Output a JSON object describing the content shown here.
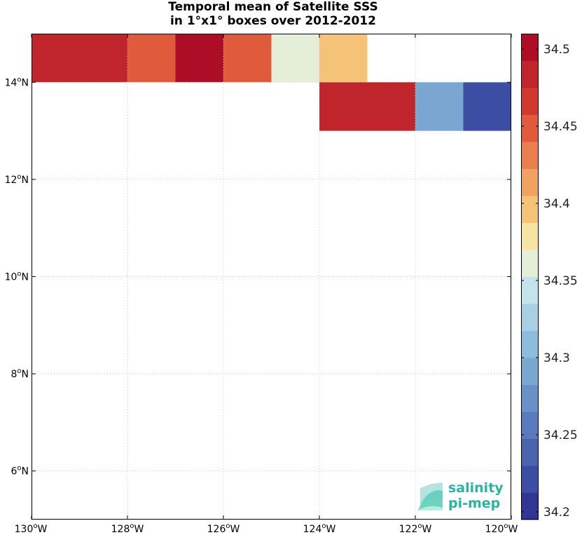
{
  "title": {
    "line1": "Temporal mean of Satellite SSS",
    "line2": "in 1°x1° boxes over 2012-2012"
  },
  "colors": {
    "palette": [
      "#313695",
      "#3b4ea3",
      "#4a64b0",
      "#5a7abe",
      "#6a90c8",
      "#7aa6d2",
      "#8ebcdc",
      "#a8cfe3",
      "#c5e3ea",
      "#e5efd8",
      "#f6e4a2",
      "#f4c378",
      "#f1a262",
      "#ea7e4f",
      "#e05a3c",
      "#d2382e",
      "#c1252c",
      "#ad0d26"
    ],
    "colorbar_min": 34.195,
    "colorbar_max": 34.51
  },
  "logo": {
    "line1": "salinity",
    "line2": "pi-mep",
    "icon": "salinity-pimep-logo-icon"
  },
  "chart_data": {
    "type": "heatmap",
    "title": "Temporal mean of Satellite SSS in 1°x1° boxes over 2012-2012",
    "x_range": [
      -130,
      -120
    ],
    "y_range": [
      5,
      15
    ],
    "x_ticks": [
      {
        "value": -130,
        "label": "130",
        "sup": "o",
        "suffix": "W"
      },
      {
        "value": -128,
        "label": "128",
        "sup": "o",
        "suffix": "W"
      },
      {
        "value": -126,
        "label": "126",
        "sup": "o",
        "suffix": "W"
      },
      {
        "value": -124,
        "label": "124",
        "sup": "o",
        "suffix": "W"
      },
      {
        "value": -122,
        "label": "122",
        "sup": "o",
        "suffix": "W"
      },
      {
        "value": -120,
        "label": "120",
        "sup": "o",
        "suffix": "W"
      }
    ],
    "y_ticks": [
      {
        "value": 6,
        "label": "6",
        "sup": "o",
        "suffix": "N"
      },
      {
        "value": 8,
        "label": "8",
        "sup": "o",
        "suffix": "N"
      },
      {
        "value": 10,
        "label": "10",
        "sup": "o",
        "suffix": "N"
      },
      {
        "value": 12,
        "label": "12",
        "sup": "o",
        "suffix": "N"
      },
      {
        "value": 14,
        "label": "14",
        "sup": "o",
        "suffix": "N"
      }
    ],
    "colorbar_ticks": [
      {
        "value": 34.5,
        "label": "34.5"
      },
      {
        "value": 34.45,
        "label": "34.45"
      },
      {
        "value": 34.4,
        "label": "34.4"
      },
      {
        "value": 34.35,
        "label": "34.35"
      },
      {
        "value": 34.3,
        "label": "34.3"
      },
      {
        "value": 34.25,
        "label": "34.25"
      },
      {
        "value": 34.2,
        "label": "34.2"
      }
    ],
    "grid": true,
    "cells": [
      {
        "lon_min": -130,
        "lat_min": 14,
        "value": 34.475
      },
      {
        "lon_min": -129,
        "lat_min": 14,
        "value": 34.475
      },
      {
        "lon_min": -128,
        "lat_min": 14,
        "value": 34.455
      },
      {
        "lon_min": -127,
        "lat_min": 14,
        "value": 34.495
      },
      {
        "lon_min": -126,
        "lat_min": 14,
        "value": 34.455
      },
      {
        "lon_min": -125,
        "lat_min": 14,
        "value": 34.355
      },
      {
        "lon_min": -124,
        "lat_min": 14,
        "value": 34.39
      },
      {
        "lon_min": -124,
        "lat_min": 13,
        "value": 34.485
      },
      {
        "lon_min": -123,
        "lat_min": 13,
        "value": 34.485
      },
      {
        "lon_min": -122,
        "lat_min": 13,
        "value": 34.29
      },
      {
        "lon_min": -121,
        "lat_min": 13,
        "value": 34.225
      }
    ]
  }
}
